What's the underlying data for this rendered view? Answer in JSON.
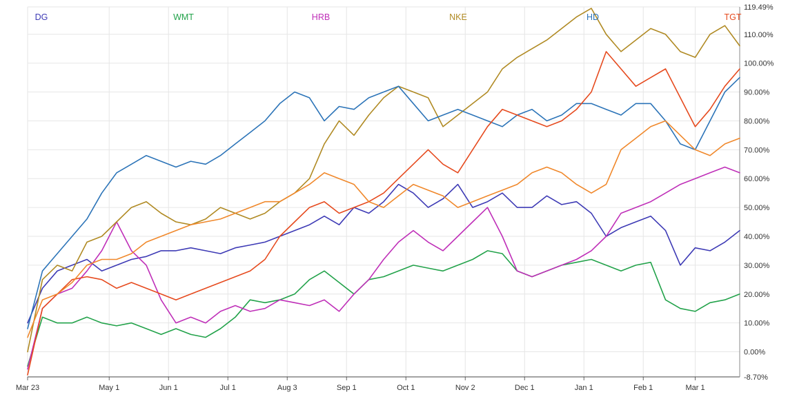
{
  "chart_data": {
    "type": "line",
    "title": "",
    "xlabel": "",
    "ylabel": "",
    "grid": true,
    "legend_position": "top",
    "x_tick_labels": [
      "Mar 23",
      "May 1",
      "Jun 1",
      "Jul 1",
      "Aug 3",
      "Sep 1",
      "Oct 1",
      "Nov 2",
      "Dec 1",
      "Jan 1",
      "Feb 1",
      "Mar 1"
    ],
    "y_tick_labels": [
      "-8.70%",
      "0.00%",
      "10.00%",
      "20.00%",
      "30.00%",
      "40.00%",
      "50.00%",
      "60.00%",
      "70.00%",
      "80.00%",
      "90.00%",
      "100.00%",
      "110.00%",
      "119.49%"
    ],
    "ylim": [
      -8.7,
      119.49
    ],
    "x_index_range": [
      0,
      48
    ],
    "x_tick_index": [
      0,
      5.5,
      9.5,
      13.5,
      17.5,
      21.5,
      25.5,
      29.5,
      33.5,
      37.5,
      41.5,
      45
    ],
    "series": [
      {
        "name": "DG",
        "color": "#3d3ab5",
        "values": [
          10,
          22,
          28,
          30,
          32,
          28,
          30,
          32,
          33,
          35,
          35,
          36,
          35,
          34,
          36,
          37,
          38,
          40,
          42,
          44,
          47,
          44,
          50,
          48,
          52,
          58,
          55,
          50,
          53,
          58,
          50,
          52,
          55,
          50,
          50,
          54,
          51,
          52,
          48,
          40,
          43,
          45,
          47,
          42,
          30,
          36,
          35,
          38,
          42
        ]
      },
      {
        "name": "WMT",
        "color": "#22a24a",
        "values": [
          -5,
          12,
          10,
          10,
          12,
          10,
          9,
          10,
          8,
          6,
          8,
          6,
          5,
          8,
          12,
          18,
          17,
          18,
          20,
          25,
          28,
          24,
          20,
          25,
          26,
          28,
          30,
          29,
          28,
          30,
          32,
          35,
          34,
          28,
          26,
          28,
          30,
          31,
          32,
          30,
          28,
          30,
          31,
          18,
          15,
          14,
          17,
          18,
          20
        ]
      },
      {
        "name": "HRB",
        "color": "#bf2fb8",
        "values": [
          -6,
          15,
          20,
          22,
          28,
          35,
          45,
          35,
          30,
          18,
          10,
          12,
          10,
          14,
          16,
          14,
          15,
          18,
          17,
          16,
          18,
          14,
          20,
          25,
          32,
          38,
          42,
          38,
          35,
          40,
          45,
          50,
          40,
          28,
          26,
          28,
          30,
          32,
          35,
          40,
          48,
          50,
          52,
          55,
          58,
          60,
          62,
          64,
          62
        ]
      },
      {
        "name": "NKE",
        "color": "#b08a23",
        "values": [
          0,
          25,
          30,
          28,
          38,
          40,
          45,
          50,
          52,
          48,
          45,
          44,
          46,
          50,
          48,
          46,
          48,
          52,
          55,
          60,
          72,
          80,
          75,
          82,
          88,
          92,
          90,
          88,
          78,
          82,
          86,
          90,
          98,
          102,
          105,
          108,
          112,
          116,
          119,
          110,
          104,
          108,
          112,
          110,
          104,
          102,
          110,
          113,
          106
        ]
      },
      {
        "name": "HD",
        "color": "#2c74b8",
        "values": [
          8,
          28,
          34,
          40,
          46,
          55,
          62,
          65,
          68,
          66,
          64,
          66,
          65,
          68,
          72,
          76,
          80,
          86,
          90,
          88,
          80,
          85,
          84,
          88,
          90,
          92,
          86,
          80,
          82,
          84,
          82,
          80,
          78,
          82,
          84,
          80,
          82,
          86,
          86,
          84,
          82,
          86,
          86,
          80,
          72,
          70,
          80,
          90,
          95
        ]
      },
      {
        "name": "TGT",
        "color": "#e64a1e",
        "values": [
          -8,
          15,
          20,
          25,
          26,
          25,
          22,
          24,
          22,
          20,
          18,
          20,
          22,
          24,
          26,
          28,
          32,
          40,
          45,
          50,
          52,
          48,
          50,
          52,
          55,
          60,
          65,
          70,
          65,
          62,
          70,
          78,
          84,
          82,
          80,
          78,
          80,
          84,
          90,
          104,
          98,
          92,
          95,
          98,
          88,
          78,
          84,
          92,
          98
        ]
      },
      {
        "name": "",
        "color": "#f0882b",
        "values": [
          5,
          18,
          20,
          24,
          30,
          32,
          32,
          34,
          38,
          40,
          42,
          44,
          45,
          46,
          48,
          50,
          52,
          52,
          55,
          58,
          62,
          60,
          58,
          52,
          50,
          54,
          58,
          56,
          54,
          50,
          52,
          54,
          56,
          58,
          62,
          64,
          62,
          58,
          55,
          58,
          70,
          74,
          78,
          80,
          75,
          70,
          68,
          72,
          74
        ]
      }
    ]
  }
}
